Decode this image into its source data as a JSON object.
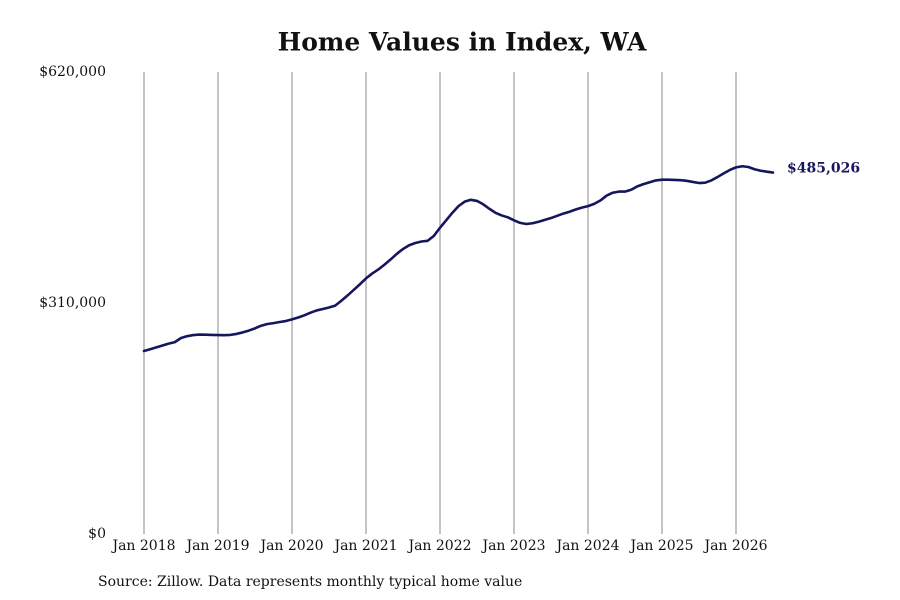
{
  "chart_data": {
    "type": "line",
    "title": "Home Values in Index, WA",
    "source": "Source: Zillow. Data represents monthly typical home value",
    "x": [
      "2018-01",
      "2018-02",
      "2018-03",
      "2018-04",
      "2018-05",
      "2018-06",
      "2018-07",
      "2018-08",
      "2018-09",
      "2018-10",
      "2018-11",
      "2018-12",
      "2019-01",
      "2019-02",
      "2019-03",
      "2019-04",
      "2019-05",
      "2019-06",
      "2019-07",
      "2019-08",
      "2019-09",
      "2019-10",
      "2019-11",
      "2019-12",
      "2020-01",
      "2020-02",
      "2020-03",
      "2020-04",
      "2020-05",
      "2020-06",
      "2020-07",
      "2020-08",
      "2020-09",
      "2020-10",
      "2020-11",
      "2020-12",
      "2021-01",
      "2021-02",
      "2021-03",
      "2021-04",
      "2021-05",
      "2021-06",
      "2021-07",
      "2021-08",
      "2021-09",
      "2021-10",
      "2021-11",
      "2021-12",
      "2022-01",
      "2022-02",
      "2022-03",
      "2022-04",
      "2022-05",
      "2022-06",
      "2022-07",
      "2022-08",
      "2022-09",
      "2022-10",
      "2022-11",
      "2022-12",
      "2023-01",
      "2023-02",
      "2023-03",
      "2023-04",
      "2023-05",
      "2023-06",
      "2023-07",
      "2023-08",
      "2023-09",
      "2023-10",
      "2023-11",
      "2023-12",
      "2024-01",
      "2024-02",
      "2024-03",
      "2024-04",
      "2024-05",
      "2024-06",
      "2024-07",
      "2024-08",
      "2024-09",
      "2024-10",
      "2024-11",
      "2024-12",
      "2025-01",
      "2025-02",
      "2025-03",
      "2025-04",
      "2025-05",
      "2025-06",
      "2025-07",
      "2025-08",
      "2025-09",
      "2025-10",
      "2025-11",
      "2025-12",
      "2026-01",
      "2026-02",
      "2026-03",
      "2026-04",
      "2026-05",
      "2026-06",
      "2026-07"
    ],
    "series": [
      {
        "name": "Typical home value",
        "color": "#16165e",
        "values": [
          245600,
          248000,
          250500,
          253000,
          255500,
          257500,
          263000,
          265500,
          267000,
          267700,
          267500,
          267200,
          267000,
          266800,
          267200,
          268500,
          270500,
          273000,
          276000,
          279500,
          281800,
          283000,
          284500,
          285800,
          288000,
          290500,
          293500,
          297000,
          300000,
          302000,
          304000,
          306500,
          313000,
          320000,
          327500,
          335000,
          343000,
          349500,
          355000,
          361500,
          368500,
          376000,
          382500,
          387500,
          390500,
          392500,
          393500,
          400000,
          411000,
          421000,
          431000,
          440000,
          446000,
          448500,
          447000,
          442500,
          436500,
          431000,
          427500,
          425000,
          421000,
          417500,
          416000,
          417000,
          419000,
          421500,
          424000,
          427000,
          430000,
          432500,
          435500,
          438000,
          440000,
          443000,
          447500,
          454000,
          458000,
          459500,
          459500,
          462000,
          466500,
          469500,
          472000,
          474500,
          475500,
          475500,
          475200,
          474800,
          474000,
          472500,
          471000,
          471500,
          474500,
          479000,
          484000,
          488500,
          492000,
          493500,
          492500,
          489500,
          487500,
          486200,
          485026
        ],
        "value_labels": [
          null,
          null,
          null,
          null,
          null,
          null,
          null,
          null,
          null,
          null,
          null,
          null,
          null,
          null,
          null,
          null,
          null,
          null,
          null,
          null,
          null,
          null,
          null,
          null,
          null,
          null,
          null,
          null,
          null,
          null,
          null,
          null,
          null,
          null,
          null,
          null,
          null,
          null,
          null,
          null,
          null,
          null,
          null,
          null,
          null,
          null,
          null,
          null,
          null,
          null,
          null,
          null,
          null,
          null,
          null,
          null,
          null,
          null,
          null,
          null,
          null,
          null,
          null,
          null,
          null,
          null,
          null,
          null,
          null,
          null,
          null,
          null,
          null,
          null,
          null,
          null,
          null,
          null,
          null,
          null,
          null,
          null,
          null,
          null,
          null,
          null,
          null,
          null,
          null,
          null,
          null,
          null,
          null,
          null,
          null,
          null,
          null,
          null,
          null,
          null,
          null,
          null,
          "$485,026"
        ]
      }
    ],
    "ylim": [
      0,
      620000
    ],
    "yticks": [
      {
        "value": 0,
        "label": "$0"
      },
      {
        "value": 310000,
        "label": "$310,000"
      },
      {
        "value": 620000,
        "label": "$620,000"
      }
    ],
    "xticks": [
      {
        "value": "2018-01",
        "label": "Jan 2018"
      },
      {
        "value": "2019-01",
        "label": "Jan 2019"
      },
      {
        "value": "2020-01",
        "label": "Jan 2020"
      },
      {
        "value": "2021-01",
        "label": "Jan 2021"
      },
      {
        "value": "2022-01",
        "label": "Jan 2022"
      },
      {
        "value": "2023-01",
        "label": "Jan 2023"
      },
      {
        "value": "2024-01",
        "label": "Jan 2024"
      },
      {
        "value": "2025-01",
        "label": "Jan 2025"
      },
      {
        "value": "2026-01",
        "label": "Jan 2026"
      }
    ],
    "grid": "x"
  }
}
